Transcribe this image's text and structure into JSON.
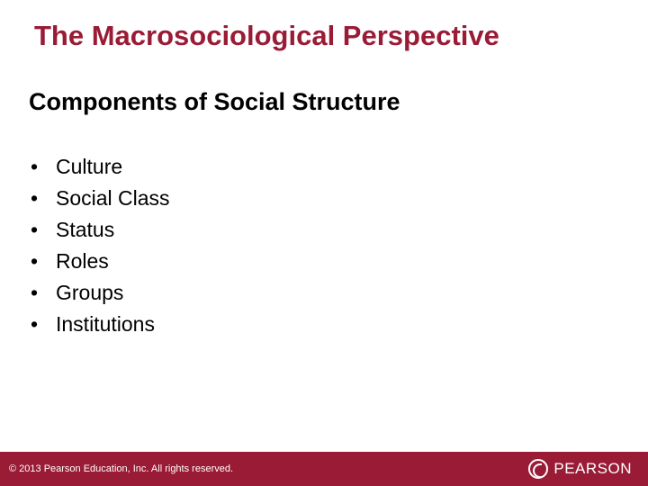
{
  "colors": {
    "accent": "#9a1b36",
    "footer_bg": "#9a1b36",
    "footer_text": "#ffffff",
    "body_text": "#000000",
    "background": "#ffffff"
  },
  "typography": {
    "title_fontsize": 31,
    "subtitle_fontsize": 27,
    "bullet_fontsize": 23,
    "copyright_fontsize": 11,
    "logo_fontsize": 17
  },
  "title": "The Macrosociological Perspective",
  "subtitle": "Components of Social Structure",
  "bullets": [
    "Culture",
    "Social Class",
    "Status",
    "Roles",
    "Groups",
    "Institutions"
  ],
  "footer": {
    "copyright": "© 2013 Pearson Education, Inc. All rights reserved.",
    "logo_text": "PEARSON"
  }
}
